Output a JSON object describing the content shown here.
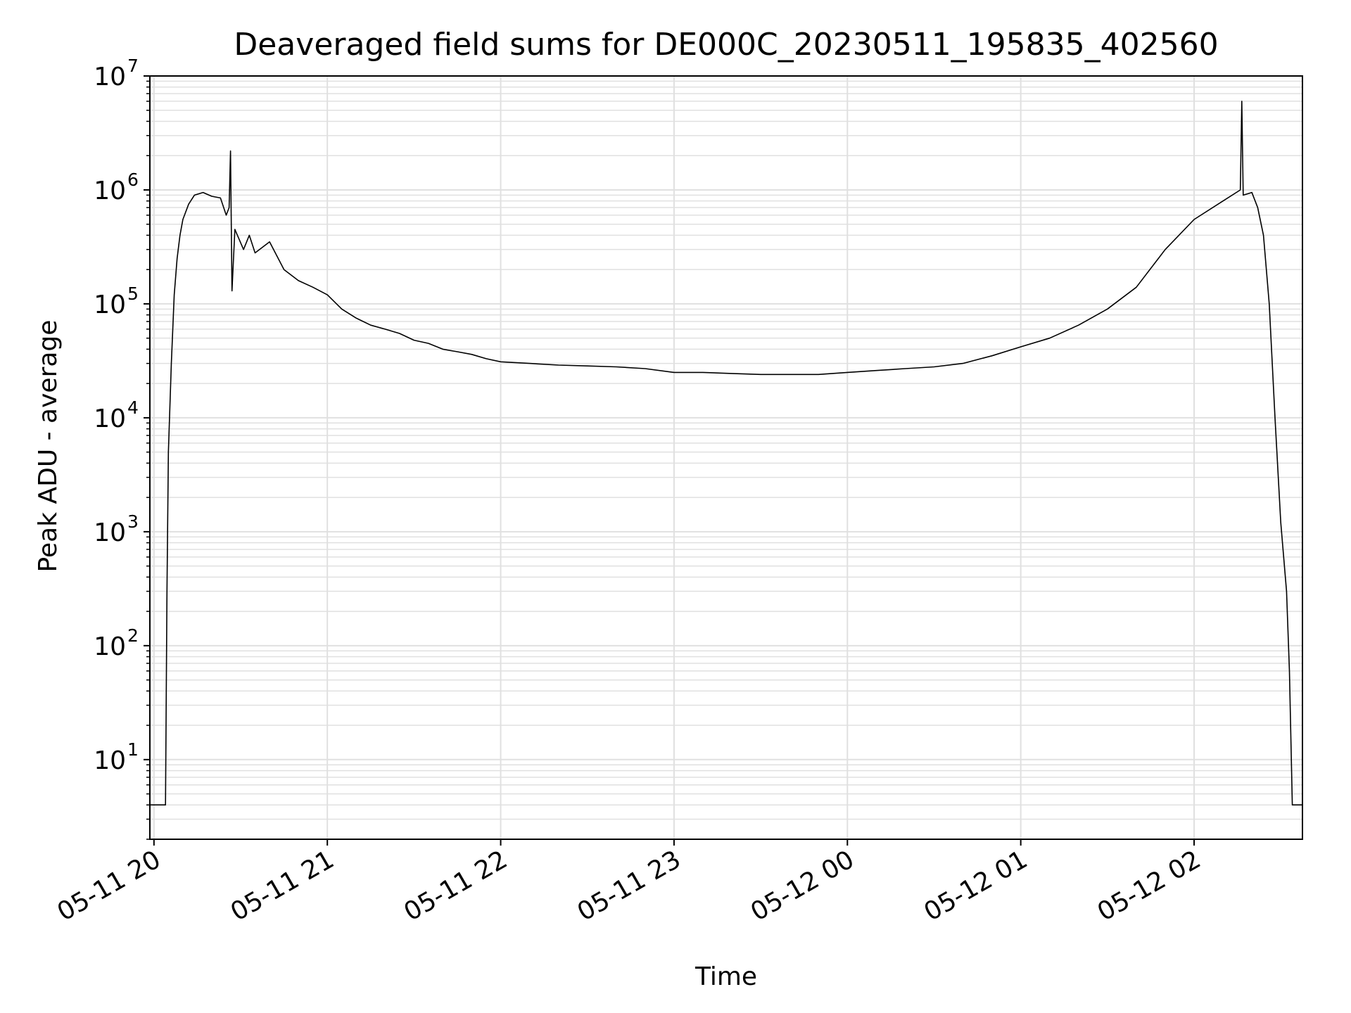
{
  "chart_data": {
    "type": "line",
    "title": "Deaveraged field sums for DE000C_20230511_195835_402560",
    "xlabel": "Time",
    "ylabel": "Peak ADU - average",
    "yscale": "log",
    "ylim": [
      2,
      10000000
    ],
    "xlim": [
      "2023-05-11 19:58:35",
      "2023-05-12 02:37:30"
    ],
    "grid": true,
    "legend": "none",
    "line_color": "#000000",
    "grid_color": "#e0e0e0",
    "x_ticks": [
      {
        "t": "2023-05-11 20:00",
        "label": "05-11 20"
      },
      {
        "t": "2023-05-11 21:00",
        "label": "05-11 21"
      },
      {
        "t": "2023-05-11 22:00",
        "label": "05-11 22"
      },
      {
        "t": "2023-05-11 23:00",
        "label": "05-11 23"
      },
      {
        "t": "2023-05-12 00:00",
        "label": "05-12 00"
      },
      {
        "t": "2023-05-12 01:00",
        "label": "05-12 01"
      },
      {
        "t": "2023-05-12 02:00",
        "label": "05-12 02"
      }
    ],
    "y_ticks": [
      {
        "value": 10,
        "base": "10",
        "exp": "1"
      },
      {
        "value": 100,
        "base": "10",
        "exp": "2"
      },
      {
        "value": 1000,
        "base": "10",
        "exp": "3"
      },
      {
        "value": 10000,
        "base": "10",
        "exp": "4"
      },
      {
        "value": 100000,
        "base": "10",
        "exp": "5"
      },
      {
        "value": 1000000,
        "base": "10",
        "exp": "6"
      },
      {
        "value": 10000000,
        "base": "10",
        "exp": "7"
      }
    ],
    "series": [
      {
        "color": "#000000",
        "points": [
          [
            "2023-05-11 19:58:35",
            4
          ],
          [
            "2023-05-11 20:02:00",
            4
          ],
          [
            "2023-05-11 20:04:00",
            4
          ],
          [
            "2023-05-11 20:04:30",
            300
          ],
          [
            "2023-05-11 20:05:00",
            5000
          ],
          [
            "2023-05-11 20:06:00",
            30000
          ],
          [
            "2023-05-11 20:07:00",
            120000
          ],
          [
            "2023-05-11 20:08:00",
            250000
          ],
          [
            "2023-05-11 20:09:00",
            400000
          ],
          [
            "2023-05-11 20:10:00",
            550000
          ],
          [
            "2023-05-11 20:12:00",
            750000
          ],
          [
            "2023-05-11 20:14:00",
            900000
          ],
          [
            "2023-05-11 20:17:00",
            950000
          ],
          [
            "2023-05-11 20:20:00",
            880000
          ],
          [
            "2023-05-11 20:23:00",
            850000
          ],
          [
            "2023-05-11 20:25:00",
            600000
          ],
          [
            "2023-05-11 20:26:00",
            700000
          ],
          [
            "2023-05-11 20:26:30",
            2200000
          ],
          [
            "2023-05-11 20:27:00",
            130000
          ],
          [
            "2023-05-11 20:28:00",
            450000
          ],
          [
            "2023-05-11 20:31:00",
            300000
          ],
          [
            "2023-05-11 20:33:00",
            400000
          ],
          [
            "2023-05-11 20:35:00",
            280000
          ],
          [
            "2023-05-11 20:40:00",
            350000
          ],
          [
            "2023-05-11 20:45:00",
            200000
          ],
          [
            "2023-05-11 20:50:00",
            160000
          ],
          [
            "2023-05-11 20:55:00",
            140000
          ],
          [
            "2023-05-11 21:00:00",
            120000
          ],
          [
            "2023-05-11 21:05:00",
            90000
          ],
          [
            "2023-05-11 21:10:00",
            75000
          ],
          [
            "2023-05-11 21:15:00",
            65000
          ],
          [
            "2023-05-11 21:20:00",
            60000
          ],
          [
            "2023-05-11 21:25:00",
            55000
          ],
          [
            "2023-05-11 21:30:00",
            48000
          ],
          [
            "2023-05-11 21:35:00",
            45000
          ],
          [
            "2023-05-11 21:40:00",
            40000
          ],
          [
            "2023-05-11 21:45:00",
            38000
          ],
          [
            "2023-05-11 21:50:00",
            36000
          ],
          [
            "2023-05-11 21:55:00",
            33000
          ],
          [
            "2023-05-11 22:00:00",
            31000
          ],
          [
            "2023-05-11 22:10:00",
            30000
          ],
          [
            "2023-05-11 22:20:00",
            29000
          ],
          [
            "2023-05-11 22:30:00",
            28500
          ],
          [
            "2023-05-11 22:40:00",
            28000
          ],
          [
            "2023-05-11 22:50:00",
            27000
          ],
          [
            "2023-05-11 23:00:00",
            25000
          ],
          [
            "2023-05-11 23:10:00",
            25000
          ],
          [
            "2023-05-11 23:20:00",
            24500
          ],
          [
            "2023-05-11 23:30:00",
            24000
          ],
          [
            "2023-05-11 23:40:00",
            24000
          ],
          [
            "2023-05-11 23:50:00",
            24000
          ],
          [
            "2023-05-12 00:00:00",
            25000
          ],
          [
            "2023-05-12 00:10:00",
            26000
          ],
          [
            "2023-05-12 00:20:00",
            27000
          ],
          [
            "2023-05-12 00:30:00",
            28000
          ],
          [
            "2023-05-12 00:40:00",
            30000
          ],
          [
            "2023-05-12 00:50:00",
            35000
          ],
          [
            "2023-05-12 01:00:00",
            42000
          ],
          [
            "2023-05-12 01:10:00",
            50000
          ],
          [
            "2023-05-12 01:20:00",
            65000
          ],
          [
            "2023-05-12 01:30:00",
            90000
          ],
          [
            "2023-05-12 01:40:00",
            140000
          ],
          [
            "2023-05-12 01:50:00",
            300000
          ],
          [
            "2023-05-12 02:00:00",
            550000
          ],
          [
            "2023-05-12 02:10:00",
            800000
          ],
          [
            "2023-05-12 02:16:00",
            1000000
          ],
          [
            "2023-05-12 02:16:30",
            6000000
          ],
          [
            "2023-05-12 02:17:00",
            900000
          ],
          [
            "2023-05-12 02:20:00",
            950000
          ],
          [
            "2023-05-12 02:22:00",
            700000
          ],
          [
            "2023-05-12 02:24:00",
            400000
          ],
          [
            "2023-05-12 02:26:00",
            100000
          ],
          [
            "2023-05-12 02:28:00",
            10000
          ],
          [
            "2023-05-12 02:30:00",
            1200
          ],
          [
            "2023-05-12 02:32:00",
            300
          ],
          [
            "2023-05-12 02:33:00",
            60
          ],
          [
            "2023-05-12 02:34:00",
            4
          ],
          [
            "2023-05-12 02:37:30",
            4
          ]
        ]
      }
    ]
  }
}
